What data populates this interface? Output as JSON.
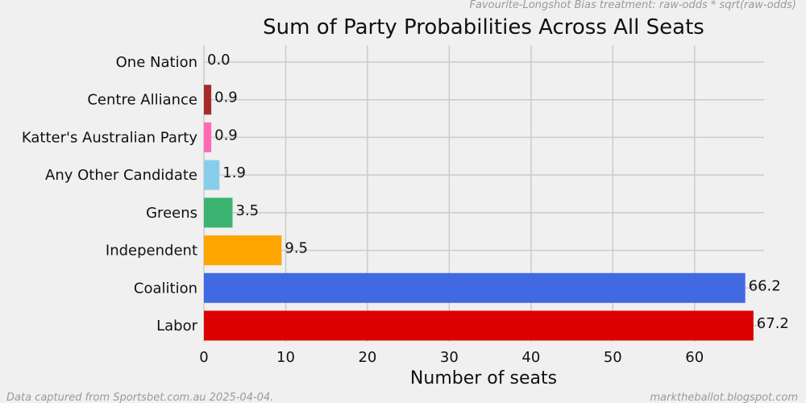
{
  "header": {
    "note": "Favourite-Longshot Bias treatment: raw-odds * sqrt(raw-odds)"
  },
  "footer": {
    "left": "Data captured from Sportsbet.com.au 2025-04-04.",
    "right": "marktheballot.blogspot.com"
  },
  "chart_data": {
    "type": "bar",
    "orientation": "horizontal",
    "title": "Sum of Party Probabilities Across All Seats",
    "xlabel": "Number of seats",
    "ylabel": "",
    "xlim": [
      0,
      68.5
    ],
    "xticks": [
      0,
      10,
      20,
      30,
      40,
      50,
      60
    ],
    "grid": true,
    "categories": [
      "Labor",
      "Coalition",
      "Independent",
      "Greens",
      "Any Other Candidate",
      "Katter's Australian Party",
      "Centre Alliance",
      "One Nation"
    ],
    "values": [
      67.2,
      66.2,
      9.5,
      3.5,
      1.9,
      0.9,
      0.9,
      0.0
    ],
    "value_labels": [
      "67.2",
      "66.2",
      "9.5",
      "3.5",
      "1.9",
      "0.9",
      "0.9",
      "0.0"
    ],
    "colors": [
      "#dd0000",
      "#4169e1",
      "#ffa500",
      "#3cb371",
      "#87ceeb",
      "#ff69b4",
      "#a52a2a",
      "#daa520"
    ]
  }
}
